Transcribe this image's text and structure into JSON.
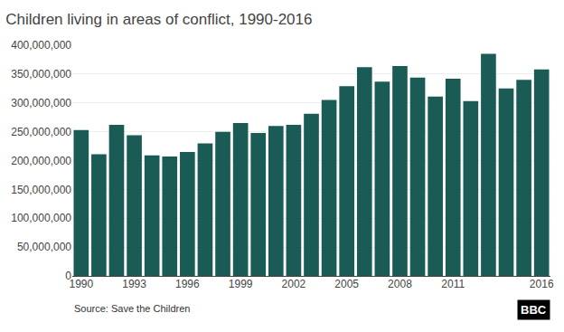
{
  "chart_data": {
    "type": "bar",
    "title": "Children living in areas of conflict, 1990-2016",
    "categories": [
      "1990",
      null,
      null,
      "1993",
      null,
      null,
      "1996",
      null,
      null,
      "1999",
      null,
      null,
      "2002",
      null,
      null,
      "2005",
      null,
      null,
      "2008",
      null,
      null,
      "2011",
      null,
      null,
      null,
      null,
      "2016"
    ],
    "values": [
      253000000,
      211000000,
      262000000,
      244000000,
      209000000,
      207000000,
      215000000,
      230000000,
      250000000,
      265000000,
      248000000,
      260000000,
      262000000,
      281000000,
      305000000,
      329000000,
      362000000,
      337000000,
      364000000,
      344000000,
      311000000,
      342000000,
      303000000,
      385000000,
      325000000,
      340000000,
      358000000
    ],
    "color": "#1a5c55",
    "ylim": [
      0,
      400000000
    ],
    "yticks": [
      0,
      {
        "value": 50000000,
        "label": "50,000,000"
      },
      {
        "value": 100000000,
        "label": "100,000,000"
      },
      {
        "value": 150000000,
        "label": "150,000,000"
      },
      {
        "value": 200000000,
        "label": "200,000,000"
      },
      {
        "value": 250000000,
        "label": "250,000,000"
      },
      {
        "value": 300000000,
        "label": "300,000,000"
      },
      {
        "value": 350000000,
        "label": "350,000,000"
      },
      {
        "value": 400000000,
        "label": "400,000,000"
      }
    ],
    "grid": true,
    "annotations": [
      "Source: Save the Children",
      "BBC"
    ]
  }
}
